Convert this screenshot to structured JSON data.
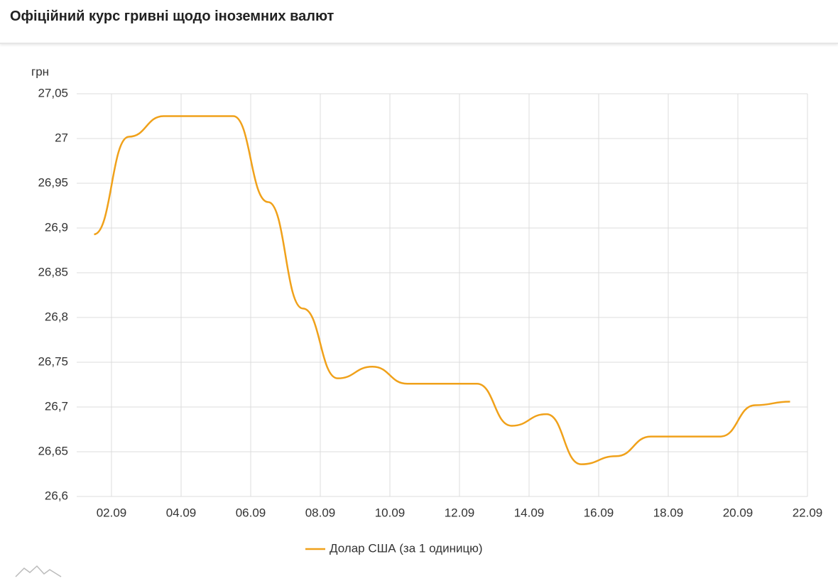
{
  "chart_data": {
    "type": "line",
    "title": "Офіційний курс гривні щодо іноземних валют",
    "y_label": "грн",
    "x": [
      1.5,
      2.5,
      3.5,
      4.5,
      5.5,
      6.5,
      7.5,
      8.5,
      9.5,
      10.5,
      11.5,
      12.5,
      13.5,
      14.5,
      15.5,
      16.5,
      17.5,
      18.5,
      19.5,
      20.5,
      21.5
    ],
    "series": [
      {
        "name": "Долар США (за 1 одиницю)",
        "color": "#f0a11a",
        "values": [
          26.893,
          27.002,
          27.025,
          27.025,
          27.025,
          26.929,
          26.81,
          26.732,
          26.745,
          26.726,
          26.726,
          26.726,
          26.679,
          26.692,
          26.636,
          26.645,
          26.667,
          26.667,
          26.667,
          26.702,
          26.706
        ]
      }
    ],
    "xlim": [
      1,
      22
    ],
    "xticks": [
      {
        "value": 2,
        "label": "02.09"
      },
      {
        "value": 4,
        "label": "04.09"
      },
      {
        "value": 6,
        "label": "06.09"
      },
      {
        "value": 8,
        "label": "08.09"
      },
      {
        "value": 10,
        "label": "10.09"
      },
      {
        "value": 12,
        "label": "12.09"
      },
      {
        "value": 14,
        "label": "14.09"
      },
      {
        "value": 16,
        "label": "16.09"
      },
      {
        "value": 18,
        "label": "18.09"
      },
      {
        "value": 20,
        "label": "20.09"
      },
      {
        "value": 22,
        "label": "22.09"
      }
    ],
    "ylim": [
      26.6,
      27.05
    ],
    "yticks": [
      {
        "value": 26.6,
        "label": "26,6"
      },
      {
        "value": 26.65,
        "label": "26,65"
      },
      {
        "value": 26.7,
        "label": "26,7"
      },
      {
        "value": 26.75,
        "label": "26,75"
      },
      {
        "value": 26.8,
        "label": "26,8"
      },
      {
        "value": 26.85,
        "label": "26,85"
      },
      {
        "value": 26.9,
        "label": "26,9"
      },
      {
        "value": 26.95,
        "label": "26,95"
      },
      {
        "value": 27,
        "label": "27"
      },
      {
        "value": 27.05,
        "label": "27,05"
      }
    ],
    "grid": true,
    "legend": "bottom"
  }
}
